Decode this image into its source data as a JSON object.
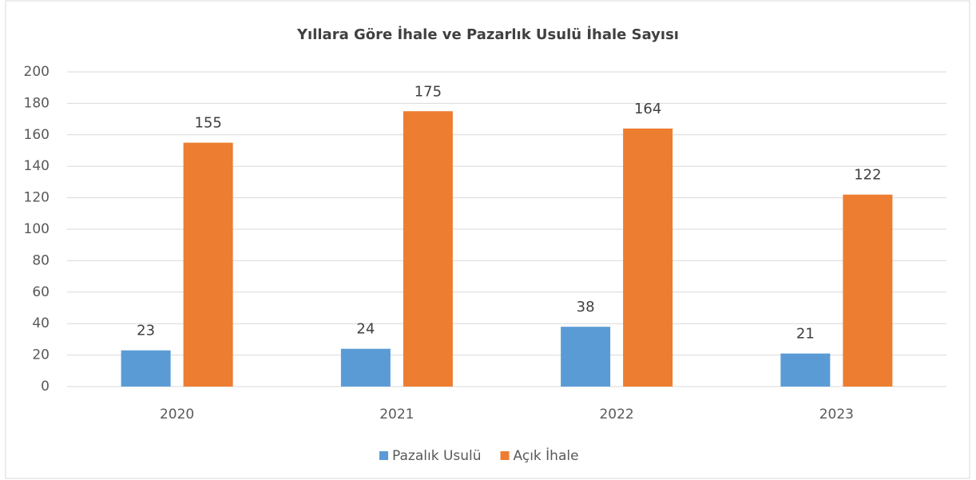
{
  "chart_data": {
    "type": "bar",
    "title": "Yıllara Göre İhale ve Pazarlık Usulü İhale Sayısı",
    "categories": [
      "2020",
      "2021",
      "2022",
      "2023"
    ],
    "series": [
      {
        "name": "Pazalık Usulü",
        "color": "#5b9bd5",
        "values": [
          23,
          24,
          38,
          21
        ]
      },
      {
        "name": "Açık İhale",
        "color": "#ed7d31",
        "values": [
          155,
          175,
          164,
          122
        ]
      }
    ],
    "ylim": [
      0,
      200
    ],
    "yticks": [
      0,
      20,
      40,
      60,
      80,
      100,
      120,
      140,
      160,
      180,
      200
    ],
    "grid": true,
    "legend": "bottom"
  }
}
